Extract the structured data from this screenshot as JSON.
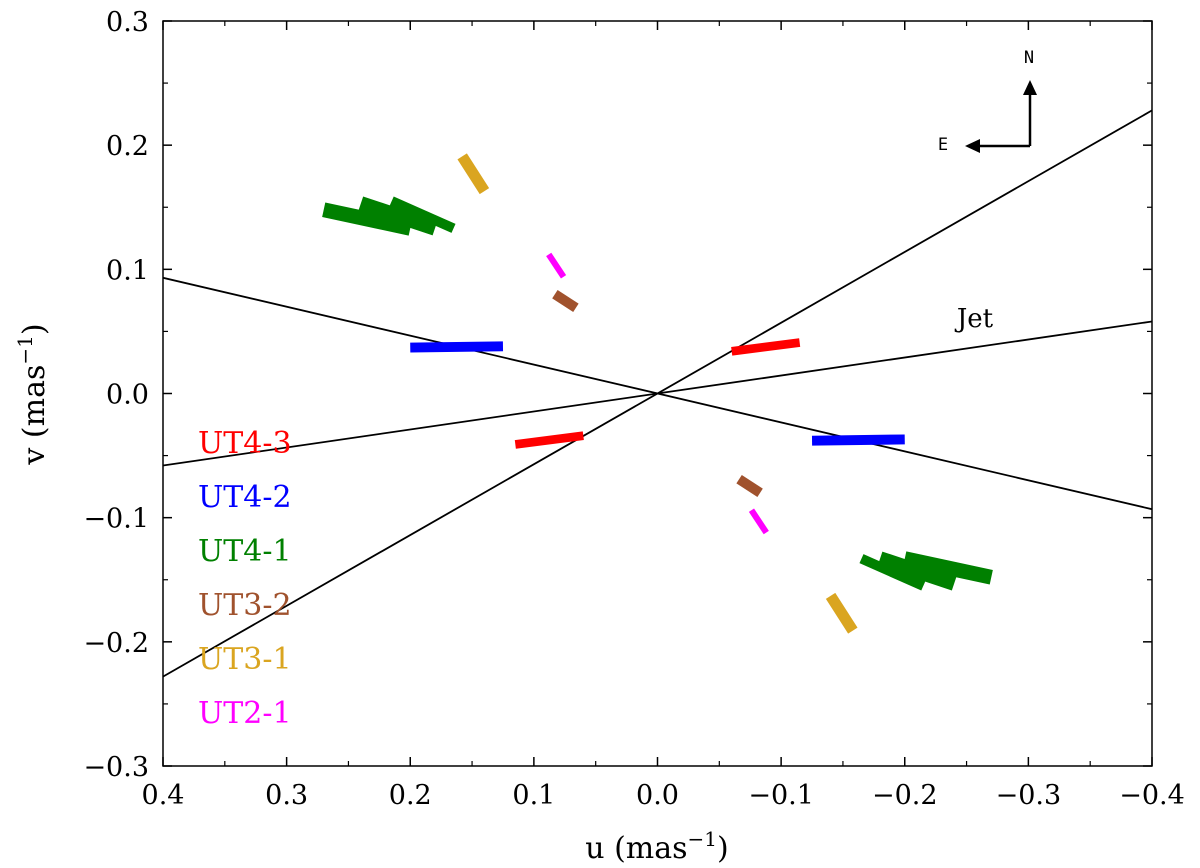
{
  "chart_data": {
    "type": "scatter",
    "title": "",
    "xlabel": "u (mas",
    "xlabel_sup": "−1",
    "xlabel_close": ")",
    "ylabel": "v (mas",
    "ylabel_sup": "−1",
    "ylabel_close": ")",
    "xlim": [
      0.4,
      -0.4
    ],
    "ylim": [
      -0.3,
      0.3
    ],
    "x_ticks": [
      {
        "value": 0.4,
        "label": "0.4"
      },
      {
        "value": 0.3,
        "label": "0.3"
      },
      {
        "value": 0.2,
        "label": "0.2"
      },
      {
        "value": 0.1,
        "label": "0.1"
      },
      {
        "value": 0.0,
        "label": "0.0"
      },
      {
        "value": -0.1,
        "label": "−0.1"
      },
      {
        "value": -0.2,
        "label": "−0.2"
      },
      {
        "value": -0.3,
        "label": "−0.3"
      },
      {
        "value": -0.4,
        "label": "−0.4"
      }
    ],
    "y_ticks": [
      {
        "value": 0.3,
        "label": "0.3"
      },
      {
        "value": 0.2,
        "label": "0.2"
      },
      {
        "value": 0.1,
        "label": "0.1"
      },
      {
        "value": 0.0,
        "label": "0.0"
      },
      {
        "value": -0.1,
        "label": "−0.1"
      },
      {
        "value": -0.2,
        "label": "−0.2"
      },
      {
        "value": -0.3,
        "label": "−0.3"
      }
    ],
    "grid": false,
    "legend_position": "left",
    "series": [
      {
        "name": "UT4-3",
        "color": "#ff0000",
        "tracks": [
          {
            "from": [
              -0.06,
              0.034
            ],
            "to": [
              -0.115,
              0.041
            ],
            "thickness": 0.007
          },
          {
            "from": [
              0.06,
              -0.034
            ],
            "to": [
              0.115,
              -0.041
            ],
            "thickness": 0.007
          }
        ]
      },
      {
        "name": "UT4-2",
        "color": "#0000ff",
        "tracks": [
          {
            "from": [
              0.2,
              0.037
            ],
            "to": [
              0.125,
              0.038
            ],
            "thickness": 0.008
          },
          {
            "from": [
              -0.2,
              -0.037
            ],
            "to": [
              -0.125,
              -0.038
            ],
            "thickness": 0.008
          }
        ]
      },
      {
        "name": "UT4-1",
        "color": "#008000",
        "tracks": [
          {
            "from": [
              0.27,
              0.148
            ],
            "to": [
              0.2,
              0.133
            ],
            "thickness": 0.012
          },
          {
            "from": [
              0.24,
              0.153
            ],
            "to": [
              0.18,
              0.133
            ],
            "thickness": 0.012
          },
          {
            "from": [
              0.215,
              0.155
            ],
            "to": [
              0.165,
              0.133
            ],
            "thickness": 0.008
          },
          {
            "from": [
              -0.27,
              -0.148
            ],
            "to": [
              -0.2,
              -0.133
            ],
            "thickness": 0.012
          },
          {
            "from": [
              -0.24,
              -0.153
            ],
            "to": [
              -0.18,
              -0.133
            ],
            "thickness": 0.012
          },
          {
            "from": [
              -0.215,
              -0.155
            ],
            "to": [
              -0.165,
              -0.133
            ],
            "thickness": 0.008
          }
        ]
      },
      {
        "name": "UT3-2",
        "color": "#a0522d",
        "tracks": [
          {
            "from": [
              0.083,
              0.08
            ],
            "to": [
              0.066,
              0.069
            ],
            "thickness": 0.008
          },
          {
            "from": [
              -0.083,
              -0.08
            ],
            "to": [
              -0.066,
              -0.069
            ],
            "thickness": 0.008
          }
        ]
      },
      {
        "name": "UT3-1",
        "color": "#daa520",
        "tracks": [
          {
            "from": [
              0.158,
              0.191
            ],
            "to": [
              0.14,
              0.163
            ],
            "thickness": 0.009
          },
          {
            "from": [
              -0.158,
              -0.191
            ],
            "to": [
              -0.14,
              -0.163
            ],
            "thickness": 0.009
          }
        ]
      },
      {
        "name": "UT2-1",
        "color": "#ff00ff",
        "tracks": [
          {
            "from": [
              0.088,
              0.112
            ],
            "to": [
              0.076,
              0.094
            ],
            "thickness": 0.005
          },
          {
            "from": [
              -0.088,
              -0.112
            ],
            "to": [
              -0.076,
              -0.094
            ],
            "thickness": 0.005
          }
        ]
      }
    ],
    "lines": [
      {
        "name": "jet",
        "slope": -0.145,
        "label": "Jet"
      },
      {
        "name": "steep",
        "slope": -0.57
      },
      {
        "name": "perpendicular",
        "slope": 0.233
      }
    ],
    "annotations": {
      "jet_label": "Jet",
      "compass_north": "N",
      "compass_east": "E"
    }
  }
}
